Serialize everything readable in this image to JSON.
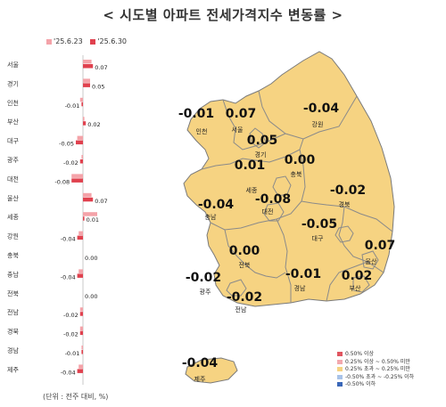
{
  "title": "< 시도별 아파트 전세가격지수 변동률 >",
  "unit_note": "(단위 : 전주 대비, %)",
  "colors": {
    "prev": "#f4a3a9",
    "curr": "#e0414e",
    "map_fill": "#f6d382",
    "map_stroke": "#7a7a7a"
  },
  "chart_data": [
    {
      "type": "bar",
      "orientation": "horizontal",
      "series": [
        {
          "name": "'25.6.23",
          "values": [
            0.06,
            0.05,
            -0.02,
            0.01,
            -0.04,
            -0.01,
            -0.08,
            0.06,
            0.1,
            -0.03,
            0.0,
            -0.03,
            0.0,
            -0.02,
            -0.02,
            -0.01,
            -0.03
          ]
        },
        {
          "name": "'25.6.30",
          "values": [
            0.07,
            0.05,
            -0.01,
            0.02,
            -0.05,
            -0.02,
            -0.08,
            0.07,
            0.01,
            -0.04,
            0.0,
            -0.04,
            0.0,
            -0.02,
            -0.02,
            -0.01,
            -0.04
          ]
        }
      ],
      "categories": [
        "서울",
        "경기",
        "인천",
        "부산",
        "대구",
        "광주",
        "대전",
        "울산",
        "세종",
        "강원",
        "충북",
        "충남",
        "전북",
        "전남",
        "경북",
        "경남",
        "제주"
      ],
      "value_labels": [
        "0.07",
        "0.05",
        "-0.01",
        "0.02",
        "-0.05",
        "-0.02",
        "-0.08",
        "0.07",
        "0.01",
        "-0.04",
        "0.00",
        "-0.04",
        "0.00",
        "-0.02",
        "-0.02",
        "-0.01",
        "-0.04"
      ]
    },
    {
      "type": "map",
      "regions": [
        {
          "name": "인천",
          "value": "-0.01"
        },
        {
          "name": "서울",
          "value": "0.07"
        },
        {
          "name": "강원",
          "value": "-0.04"
        },
        {
          "name": "경기",
          "value": "0.05"
        },
        {
          "name": "충북",
          "value": "0.00"
        },
        {
          "name": "세종",
          "value": "0.01"
        },
        {
          "name": "대전",
          "value": "-0.08"
        },
        {
          "name": "충남",
          "value": "-0.04"
        },
        {
          "name": "경북",
          "value": "-0.02"
        },
        {
          "name": "대구",
          "value": "-0.05"
        },
        {
          "name": "울산",
          "value": "0.07"
        },
        {
          "name": "전북",
          "value": "0.00"
        },
        {
          "name": "광주",
          "value": "-0.02"
        },
        {
          "name": "전남",
          "value": "-0.02"
        },
        {
          "name": "경남",
          "value": "-0.01"
        },
        {
          "name": "부산",
          "value": "0.02"
        },
        {
          "name": "제주",
          "value": "-0.04"
        }
      ],
      "legend": [
        {
          "label": "0.50% 이상",
          "color": "#e05560"
        },
        {
          "label": "0.25% 이상 ~ 0.50% 미만",
          "color": "#f3a9ae"
        },
        {
          "label": "0.25% 초과 ~ 0.25% 미만",
          "color": "#f6d382"
        },
        {
          "label": "-0.50% 초과 ~ -0.25% 이하",
          "color": "#a9c3e8"
        },
        {
          "label": "-0.50% 이하",
          "color": "#3a67b8"
        }
      ]
    }
  ]
}
